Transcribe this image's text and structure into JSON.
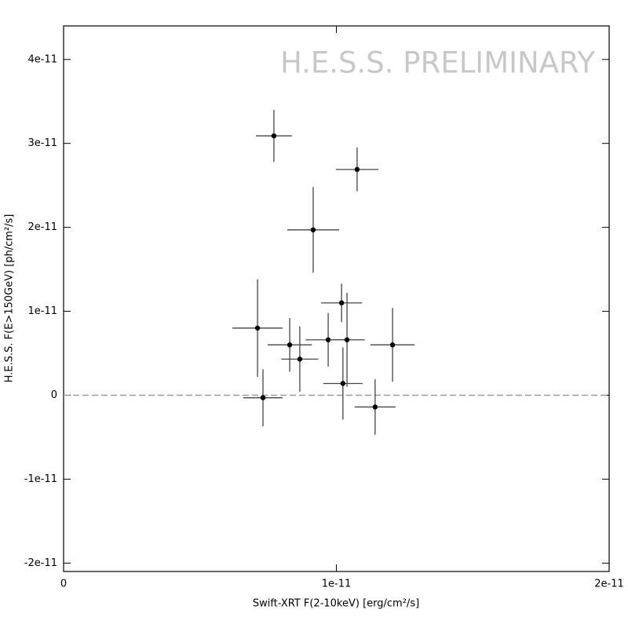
{
  "chart_data": {
    "type": "errorbar",
    "watermark": "H.E.S.S. PRELIMINARY",
    "xlabel": "Swift-XRT F(2-10keV) [erg/cm²/s]",
    "ylabel": "H.E.S.S. F(E>150GeV) [ph/cm²/s]",
    "xlim": [
      0,
      2e-11
    ],
    "ylim": [
      -2.1e-11,
      4.4e-11
    ],
    "xticks": [
      0,
      {
        "value": 1e-11,
        "label": "1e-11"
      },
      {
        "value": 2e-11,
        "label": "2e-11"
      }
    ],
    "yticks": [
      {
        "value": -2e-11,
        "label": "-2e-11"
      },
      {
        "value": -1e-11,
        "label": "-1e-11"
      },
      0,
      {
        "value": 1e-11,
        "label": "1e-11"
      },
      {
        "value": 2e-11,
        "label": "2e-11"
      },
      {
        "value": 3e-11,
        "label": "3e-11"
      },
      {
        "value": 4e-11,
        "label": "4e-11"
      }
    ],
    "hline": 0,
    "color": "#000000",
    "x": [
      7.71e-12,
      1.076e-11,
      9.15e-12,
      1.019e-11,
      7.11e-12,
      8.29e-12,
      9.7e-12,
      1.039e-11,
      1.206e-11,
      8.66e-12,
      1.024e-11,
      7.31e-12,
      1.142e-11
    ],
    "y": [
      3.09e-11,
      2.69e-11,
      1.97e-11,
      1.1e-11,
      8e-12,
      6e-12,
      6.6e-12,
      6.6e-12,
      6e-12,
      4.3e-12,
      1.4e-12,
      -3e-13,
      -1.4e-12
    ],
    "xerr": [
      6.6e-13,
      7.8e-13,
      9.5e-13,
      7.5e-13,
      9.2e-13,
      8.1e-13,
      8.3e-13,
      6.5e-13,
      8.1e-13,
      6.8e-13,
      7.2e-13,
      7.2e-13,
      7.5e-13
    ],
    "yerr": [
      3.1e-12,
      2.6e-12,
      5.1e-12,
      2.3e-12,
      5.8e-12,
      3.2e-12,
      3.2e-12,
      5.6e-12,
      4.4e-12,
      3.9e-12,
      4.3e-12,
      3.4e-12,
      3.3e-12
    ]
  }
}
